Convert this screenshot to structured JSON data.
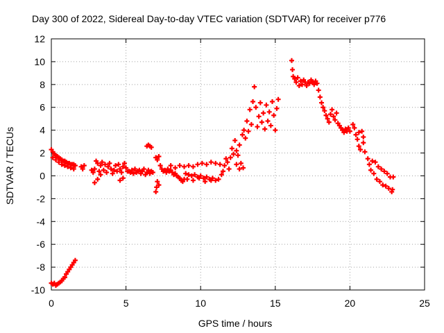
{
  "chart_data": {
    "type": "scatter",
    "title": "Day 300 of 2022, Sidereal Day-to-day VTEC variation (SDTVAR) for receiver p776",
    "xlabel": "GPS time / hours",
    "ylabel": "SDTVAR / TECUs",
    "xlim": [
      0,
      25
    ],
    "ylim": [
      -10,
      12
    ],
    "x_ticks": [
      0,
      5,
      10,
      15,
      20,
      25
    ],
    "y_ticks": [
      -10,
      -8,
      -6,
      -4,
      -2,
      0,
      2,
      4,
      6,
      8,
      10,
      12
    ],
    "grid": true,
    "marker": "+",
    "series": [
      {
        "name": "SDTVAR",
        "color": "#ff0000",
        "points": [
          [
            0.0,
            -9.4
          ],
          [
            0.1,
            -9.5
          ],
          [
            0.2,
            -9.4
          ],
          [
            0.3,
            -9.6
          ],
          [
            0.4,
            -9.5
          ],
          [
            0.5,
            -9.4
          ],
          [
            0.6,
            -9.3
          ],
          [
            0.7,
            -9.2
          ],
          [
            0.8,
            -9.0
          ],
          [
            0.9,
            -8.9
          ],
          [
            1.0,
            -8.6
          ],
          [
            1.1,
            -8.4
          ],
          [
            1.2,
            -8.2
          ],
          [
            1.3,
            -8.0
          ],
          [
            1.4,
            -7.8
          ],
          [
            1.5,
            -7.6
          ],
          [
            1.6,
            -7.4
          ],
          [
            0.0,
            2.3
          ],
          [
            0.1,
            2.1
          ],
          [
            0.2,
            1.9
          ],
          [
            0.3,
            1.8
          ],
          [
            0.4,
            1.7
          ],
          [
            0.5,
            1.6
          ],
          [
            0.6,
            1.5
          ],
          [
            0.7,
            1.4
          ],
          [
            0.8,
            1.3
          ],
          [
            0.9,
            1.3
          ],
          [
            1.0,
            1.2
          ],
          [
            1.1,
            1.1
          ],
          [
            1.2,
            1.1
          ],
          [
            1.3,
            1.0
          ],
          [
            1.4,
            1.0
          ],
          [
            1.5,
            1.0
          ],
          [
            1.6,
            0.9
          ],
          [
            0.1,
            1.6
          ],
          [
            0.3,
            1.4
          ],
          [
            0.5,
            1.2
          ],
          [
            0.7,
            1.0
          ],
          [
            0.9,
            0.9
          ],
          [
            1.1,
            0.8
          ],
          [
            1.3,
            0.7
          ],
          [
            1.5,
            0.6
          ],
          [
            2.0,
            0.8
          ],
          [
            2.1,
            0.6
          ],
          [
            2.2,
            0.9
          ],
          [
            2.7,
            0.5
          ],
          [
            2.8,
            0.3
          ],
          [
            2.9,
            0.6
          ],
          [
            3.0,
            1.3
          ],
          [
            3.1,
            1.1
          ],
          [
            3.2,
            0.4
          ],
          [
            3.3,
            0.9
          ],
          [
            3.4,
            1.2
          ],
          [
            3.5,
            0.5
          ],
          [
            3.6,
            1.0
          ],
          [
            3.7,
            0.3
          ],
          [
            3.8,
            0.8
          ],
          [
            3.9,
            1.1
          ],
          [
            4.0,
            0.6
          ],
          [
            4.1,
            0.2
          ],
          [
            4.2,
            0.5
          ],
          [
            4.3,
            0.9
          ],
          [
            4.4,
            0.4
          ],
          [
            4.5,
            1.0
          ],
          [
            4.6,
            0.6
          ],
          [
            4.7,
            0.3
          ],
          [
            4.8,
            0.8
          ],
          [
            4.9,
            1.1
          ],
          [
            5.0,
            0.7
          ],
          [
            5.1,
            0.4
          ],
          [
            2.9,
            -0.6
          ],
          [
            3.1,
            -0.3
          ],
          [
            3.3,
            0.1
          ],
          [
            4.6,
            -0.4
          ],
          [
            4.8,
            -0.2
          ],
          [
            5.2,
            0.4
          ],
          [
            5.3,
            0.3
          ],
          [
            5.4,
            0.5
          ],
          [
            5.5,
            0.2
          ],
          [
            5.6,
            0.6
          ],
          [
            5.7,
            0.3
          ],
          [
            5.8,
            0.4
          ],
          [
            5.9,
            0.5
          ],
          [
            6.0,
            0.2
          ],
          [
            6.1,
            0.4
          ],
          [
            6.2,
            0.6
          ],
          [
            6.3,
            0.1
          ],
          [
            6.4,
            0.3
          ],
          [
            6.5,
            0.5
          ],
          [
            6.6,
            0.2
          ],
          [
            6.7,
            0.4
          ],
          [
            6.8,
            0.3
          ],
          [
            6.4,
            2.6
          ],
          [
            6.5,
            2.7
          ],
          [
            6.6,
            2.6
          ],
          [
            6.7,
            2.5
          ],
          [
            7.0,
            -1.4
          ],
          [
            7.05,
            -1.0
          ],
          [
            7.1,
            -0.5
          ],
          [
            7.2,
            -0.8
          ],
          [
            7.0,
            1.6
          ],
          [
            7.1,
            1.4
          ],
          [
            7.2,
            1.7
          ],
          [
            7.3,
            0.9
          ],
          [
            7.4,
            0.6
          ],
          [
            7.5,
            0.4
          ],
          [
            7.6,
            0.5
          ],
          [
            7.7,
            0.3
          ],
          [
            7.8,
            0.6
          ],
          [
            7.9,
            0.4
          ],
          [
            8.0,
            0.5
          ],
          [
            8.1,
            0.3
          ],
          [
            8.2,
            0.1
          ],
          [
            8.3,
            0.2
          ],
          [
            8.4,
            0.0
          ],
          [
            8.5,
            -0.1
          ],
          [
            8.6,
            -0.2
          ],
          [
            8.7,
            -0.4
          ],
          [
            8.8,
            -0.5
          ],
          [
            8.9,
            -0.3
          ],
          [
            8.0,
            0.9
          ],
          [
            8.3,
            0.7
          ],
          [
            8.6,
            0.9
          ],
          [
            8.9,
            0.8
          ],
          [
            9.2,
            0.9
          ],
          [
            9.5,
            0.8
          ],
          [
            9.8,
            1.0
          ],
          [
            10.1,
            1.1
          ],
          [
            10.4,
            1.0
          ],
          [
            10.7,
            1.2
          ],
          [
            11.0,
            1.1
          ],
          [
            11.3,
            1.0
          ],
          [
            9.0,
            0.2
          ],
          [
            9.2,
            0.1
          ],
          [
            9.4,
            0.0
          ],
          [
            9.6,
            0.1
          ],
          [
            9.8,
            -0.1
          ],
          [
            10.0,
            0.0
          ],
          [
            10.2,
            -0.2
          ],
          [
            10.4,
            -0.1
          ],
          [
            10.6,
            -0.3
          ],
          [
            10.8,
            -0.2
          ],
          [
            11.0,
            -0.4
          ],
          [
            11.2,
            -0.3
          ],
          [
            9.1,
            -0.3
          ],
          [
            9.5,
            -0.4
          ],
          [
            9.9,
            -0.2
          ],
          [
            10.3,
            -0.5
          ],
          [
            10.7,
            -0.4
          ],
          [
            11.4,
            0.1
          ],
          [
            11.5,
            0.4
          ],
          [
            11.6,
            0.9
          ],
          [
            11.7,
            1.5
          ],
          [
            11.8,
            1.2
          ],
          [
            11.9,
            0.6
          ],
          [
            12.0,
            1.6
          ],
          [
            12.1,
            2.4
          ],
          [
            12.2,
            1.9
          ],
          [
            12.3,
            3.1
          ],
          [
            12.4,
            2.2
          ],
          [
            12.5,
            1.8
          ],
          [
            12.6,
            2.7
          ],
          [
            12.7,
            1.1
          ],
          [
            12.8,
            3.6
          ],
          [
            12.9,
            4.0
          ],
          [
            12.85,
            0.7
          ],
          [
            12.6,
            0.6
          ],
          [
            12.4,
            1.0
          ],
          [
            13.0,
            3.3
          ],
          [
            13.1,
            4.8
          ],
          [
            13.2,
            3.9
          ],
          [
            13.3,
            5.8
          ],
          [
            13.4,
            4.5
          ],
          [
            13.5,
            6.5
          ],
          [
            13.6,
            7.8
          ],
          [
            13.7,
            6.0
          ],
          [
            13.8,
            4.3
          ],
          [
            13.9,
            5.2
          ],
          [
            14.0,
            6.4
          ],
          [
            14.1,
            4.7
          ],
          [
            14.2,
            5.5
          ],
          [
            14.3,
            4.1
          ],
          [
            14.4,
            6.2
          ],
          [
            14.5,
            4.8
          ],
          [
            14.6,
            5.6
          ],
          [
            14.7,
            4.4
          ],
          [
            14.8,
            6.5
          ],
          [
            14.9,
            5.3
          ],
          [
            15.0,
            4.0
          ],
          [
            15.1,
            5.9
          ],
          [
            15.2,
            6.7
          ],
          [
            16.1,
            10.1
          ],
          [
            16.15,
            9.3
          ],
          [
            16.2,
            8.7
          ],
          [
            16.3,
            8.5
          ],
          [
            16.4,
            8.2
          ],
          [
            16.5,
            8.6
          ],
          [
            16.6,
            7.9
          ],
          [
            16.7,
            8.3
          ],
          [
            16.8,
            8.0
          ],
          [
            16.9,
            8.4
          ],
          [
            17.0,
            8.2
          ],
          [
            17.1,
            7.9
          ],
          [
            17.2,
            8.2
          ],
          [
            17.3,
            8.1
          ],
          [
            17.4,
            8.4
          ],
          [
            17.5,
            8.2
          ],
          [
            17.6,
            8.0
          ],
          [
            17.7,
            8.3
          ],
          [
            17.8,
            8.1
          ],
          [
            17.9,
            7.5
          ],
          [
            18.0,
            6.9
          ],
          [
            18.1,
            6.4
          ],
          [
            18.2,
            6.0
          ],
          [
            18.3,
            5.7
          ],
          [
            18.4,
            5.3
          ],
          [
            18.5,
            5.0
          ],
          [
            18.6,
            4.7
          ],
          [
            18.7,
            5.4
          ],
          [
            18.8,
            5.8
          ],
          [
            18.9,
            5.2
          ],
          [
            19.0,
            4.9
          ],
          [
            19.1,
            5.5
          ],
          [
            19.2,
            4.6
          ],
          [
            19.3,
            4.4
          ],
          [
            19.4,
            4.2
          ],
          [
            19.5,
            4.0
          ],
          [
            19.6,
            3.8
          ],
          [
            19.7,
            4.1
          ],
          [
            19.8,
            3.9
          ],
          [
            19.9,
            4.2
          ],
          [
            20.0,
            3.9
          ],
          [
            20.2,
            4.5
          ],
          [
            20.3,
            4.2
          ],
          [
            20.4,
            3.6
          ],
          [
            20.5,
            3.2
          ],
          [
            20.6,
            2.6
          ],
          [
            20.7,
            2.3
          ],
          [
            20.8,
            3.9
          ],
          [
            20.9,
            3.4
          ],
          [
            21.0,
            2.1
          ],
          [
            20.6,
            3.8
          ],
          [
            20.9,
            2.9
          ],
          [
            21.2,
            1.5
          ],
          [
            21.3,
            1.0
          ],
          [
            21.4,
            0.5
          ],
          [
            21.5,
            1.3
          ],
          [
            21.6,
            0.2
          ],
          [
            21.7,
            1.2
          ],
          [
            21.8,
            -0.3
          ],
          [
            21.9,
            0.8
          ],
          [
            22.0,
            -0.5
          ],
          [
            22.1,
            0.6
          ],
          [
            22.2,
            -0.8
          ],
          [
            22.3,
            0.4
          ],
          [
            22.4,
            -0.9
          ],
          [
            22.5,
            0.2
          ],
          [
            22.6,
            -1.1
          ],
          [
            22.7,
            -0.1
          ],
          [
            22.8,
            -1.4
          ],
          [
            22.9,
            -0.1
          ],
          [
            22.85,
            -1.2
          ]
        ]
      }
    ]
  }
}
